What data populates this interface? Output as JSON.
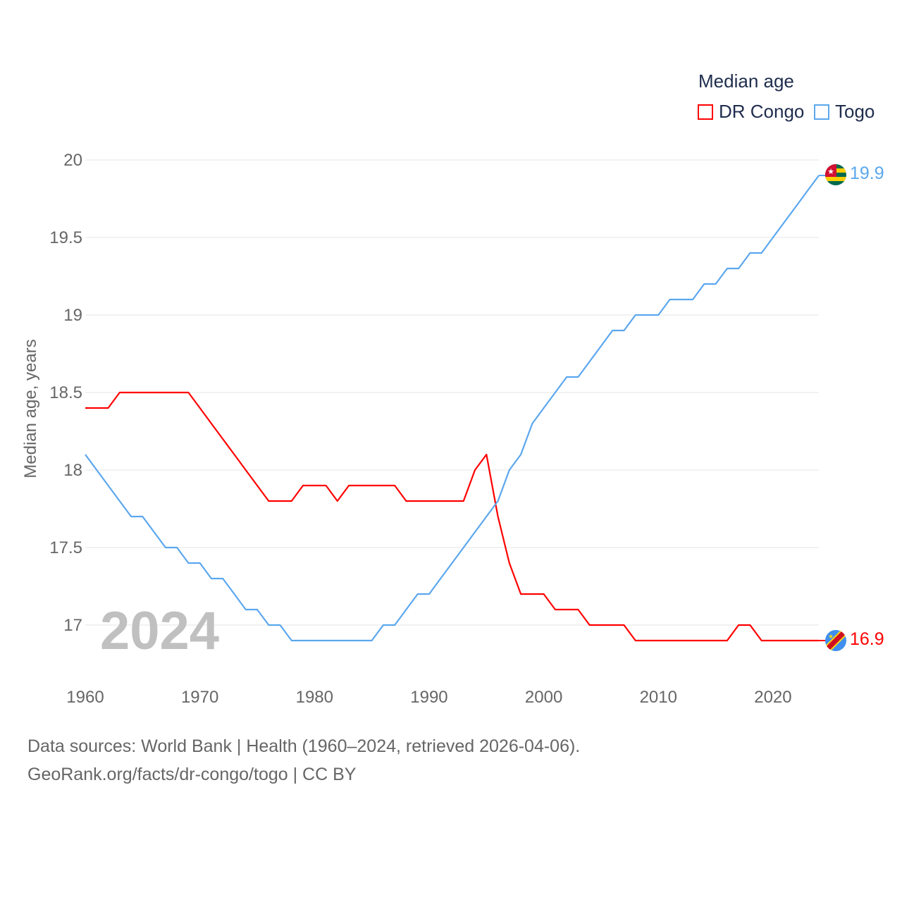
{
  "chart_data": {
    "type": "line",
    "title": "Median age",
    "ylabel": "Median age, years",
    "xlabel": "",
    "ylim": [
      16.75,
      20.05
    ],
    "xlim": [
      1960,
      2024
    ],
    "yticks": [
      "17",
      "17.5",
      "18",
      "18.5",
      "19",
      "19.5",
      "20"
    ],
    "xticks": [
      "1960",
      "1970",
      "1980",
      "1990",
      "2000",
      "2010",
      "2020"
    ],
    "grid": true,
    "legend_position": "top-right",
    "year_watermark": "2024",
    "x": [
      1960,
      1961,
      1962,
      1963,
      1964,
      1965,
      1966,
      1967,
      1968,
      1969,
      1970,
      1971,
      1972,
      1973,
      1974,
      1975,
      1976,
      1977,
      1978,
      1979,
      1980,
      1981,
      1982,
      1983,
      1984,
      1985,
      1986,
      1987,
      1988,
      1989,
      1990,
      1991,
      1992,
      1993,
      1994,
      1995,
      1996,
      1997,
      1998,
      1999,
      2000,
      2001,
      2002,
      2003,
      2004,
      2005,
      2006,
      2007,
      2008,
      2009,
      2010,
      2011,
      2012,
      2013,
      2014,
      2015,
      2016,
      2017,
      2018,
      2019,
      2020,
      2021,
      2022,
      2023,
      2024
    ],
    "series": [
      {
        "name": "DR Congo",
        "color": "#ff0000",
        "end_label": "16.9",
        "values": [
          18.4,
          18.4,
          18.4,
          18.5,
          18.5,
          18.5,
          18.5,
          18.5,
          18.5,
          18.5,
          18.4,
          18.3,
          18.2,
          18.1,
          18.0,
          17.9,
          17.8,
          17.8,
          17.8,
          17.9,
          17.9,
          17.9,
          17.8,
          17.9,
          17.9,
          17.9,
          17.9,
          17.9,
          17.8,
          17.8,
          17.8,
          17.8,
          17.8,
          17.8,
          18.0,
          18.1,
          17.7,
          17.4,
          17.2,
          17.2,
          17.2,
          17.1,
          17.1,
          17.1,
          17.0,
          17.0,
          17.0,
          17.0,
          16.9,
          16.9,
          16.9,
          16.9,
          16.9,
          16.9,
          16.9,
          16.9,
          16.9,
          17.0,
          17.0,
          16.9,
          16.9,
          16.9,
          16.9,
          16.9,
          16.9
        ]
      },
      {
        "name": "Togo",
        "color": "#5ba7ee",
        "end_label": "19.9",
        "values": [
          18.1,
          18.0,
          17.9,
          17.8,
          17.7,
          17.7,
          17.6,
          17.5,
          17.5,
          17.4,
          17.4,
          17.3,
          17.3,
          17.2,
          17.1,
          17.1,
          17.0,
          17.0,
          16.9,
          16.9,
          16.9,
          16.9,
          16.9,
          16.9,
          16.9,
          16.9,
          17.0,
          17.0,
          17.1,
          17.2,
          17.2,
          17.3,
          17.4,
          17.5,
          17.6,
          17.7,
          17.8,
          18.0,
          18.1,
          18.3,
          18.4,
          18.5,
          18.6,
          18.6,
          18.7,
          18.8,
          18.9,
          18.9,
          19.0,
          19.0,
          19.0,
          19.1,
          19.1,
          19.1,
          19.2,
          19.2,
          19.3,
          19.3,
          19.4,
          19.4,
          19.5,
          19.6,
          19.7,
          19.8,
          19.9
        ]
      }
    ]
  },
  "source": {
    "line1": "Data sources: World Bank | Health (1960–2024, retrieved 2026-04-06).",
    "line2": "GeoRank.org/facts/dr-congo/togo | CC BY"
  }
}
